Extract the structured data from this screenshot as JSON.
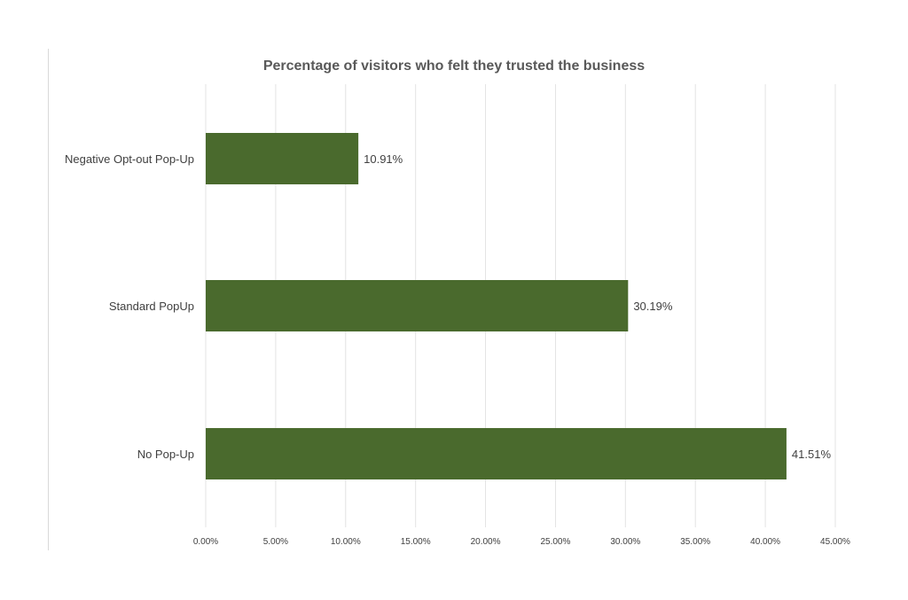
{
  "chart_data": {
    "type": "bar",
    "orientation": "horizontal",
    "title": "Percentage of visitors who felt they trusted the business",
    "categories": [
      "Negative Opt-out Pop-Up",
      "Standard PopUp",
      "No Pop-Up"
    ],
    "values": [
      10.91,
      30.19,
      41.51
    ],
    "value_labels": [
      "10.91%",
      "30.19%",
      "41.51%"
    ],
    "xlim": [
      0,
      45
    ],
    "x_ticks": [
      0,
      5,
      10,
      15,
      20,
      25,
      30,
      35,
      40,
      45
    ],
    "x_tick_labels": [
      "0.00%",
      "5.00%",
      "10.00%",
      "15.00%",
      "20.00%",
      "25.00%",
      "30.00%",
      "35.00%",
      "40.00%",
      "45.00%"
    ],
    "grid": true,
    "legend": "none",
    "colors": {
      "bar": "#4a6a2d",
      "grid": "#e3e3e3",
      "text": "#404040",
      "title": "#595959"
    }
  }
}
